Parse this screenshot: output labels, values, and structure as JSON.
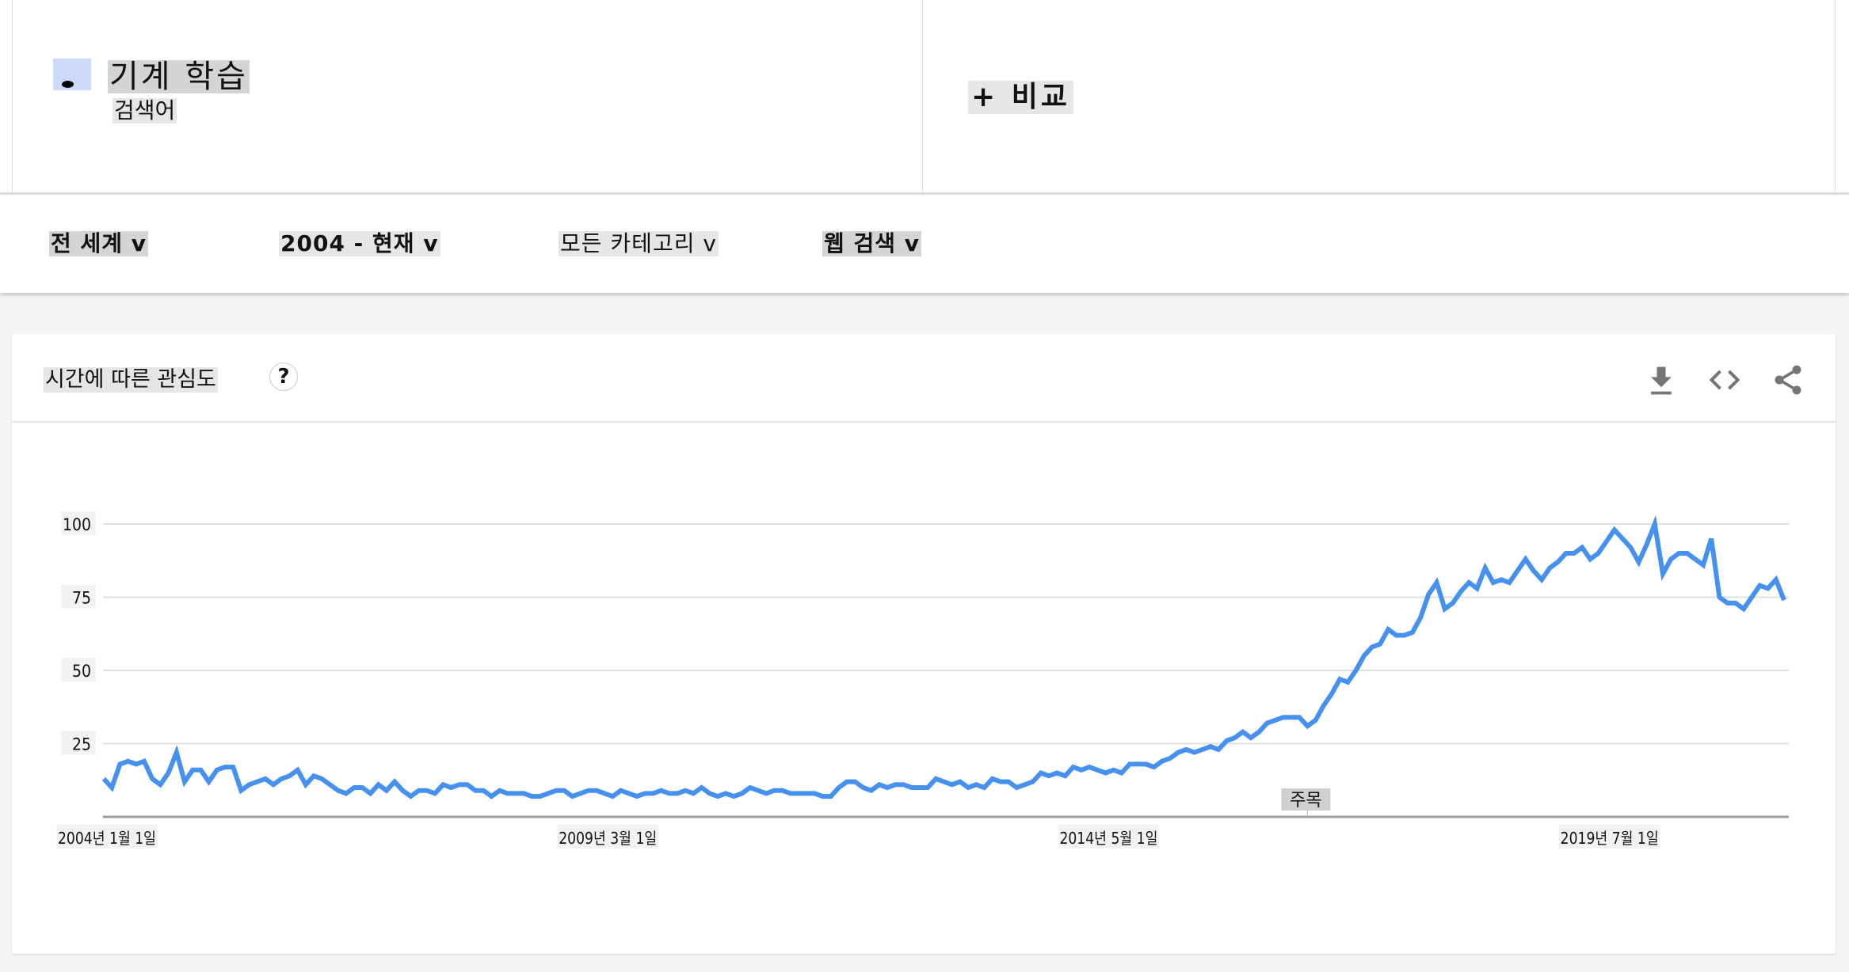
{
  "search_term": {
    "label": "기계 학습",
    "sublabel": "검색어",
    "color": "#cdd9fb"
  },
  "compare": {
    "label": "+ 비교"
  },
  "filters": [
    {
      "label": "전 세계 v"
    },
    {
      "label": "2004 - 현재 v"
    },
    {
      "label": "모든 카테고리 v"
    },
    {
      "label": "웹 검색 v"
    }
  ],
  "card": {
    "title": "시간에 따른 관심도",
    "help_label": "?",
    "icons": [
      "download-icon",
      "embed-code-icon",
      "share-icon"
    ]
  },
  "chart_data": {
    "type": "line",
    "title": "시간에 따른 관심도",
    "x_start": "2004-01",
    "x_frequency": "monthly",
    "x_ticks": [
      "2004년 1월 1일",
      "2009년 3월 1일",
      "2014년 5월 1일",
      "2019년 7월 1일"
    ],
    "x_tick_dates": [
      "2004-01",
      "2009-03",
      "2014-05",
      "2019-07"
    ],
    "y_ticks": [
      25,
      50,
      75,
      100
    ],
    "ylim": [
      0,
      100
    ],
    "grid": true,
    "annotation": {
      "label": "주목",
      "date": "2016-06"
    },
    "line_color": "#4691ef",
    "series": [
      {
        "values": [
          13,
          10,
          18,
          19,
          18,
          19,
          13,
          11,
          15,
          22,
          12,
          16,
          16,
          12,
          16,
          17,
          17,
          9,
          11,
          12,
          13,
          11,
          13,
          14,
          16,
          11,
          14,
          13,
          11,
          9,
          8,
          10,
          10,
          8,
          11,
          9,
          12,
          9,
          7,
          9,
          9,
          8,
          11,
          10,
          11,
          11,
          9,
          9,
          7,
          9,
          8,
          8,
          8,
          7,
          7,
          8,
          9,
          9,
          7,
          8,
          9,
          9,
          8,
          7,
          9,
          8,
          7,
          8,
          8,
          9,
          8,
          8,
          9,
          8,
          10,
          8,
          7,
          8,
          7,
          8,
          10,
          9,
          8,
          9,
          9,
          8,
          8,
          8,
          8,
          7,
          7,
          10,
          12,
          12,
          10,
          9,
          11,
          10,
          11,
          11,
          10,
          10,
          10,
          13,
          12,
          11,
          12,
          10,
          11,
          10,
          13,
          12,
          12,
          10,
          11,
          12,
          15,
          14,
          15,
          14,
          17,
          16,
          17,
          16,
          15,
          16,
          15,
          18,
          18,
          18,
          17,
          19,
          20,
          22,
          23,
          22,
          23,
          24,
          23,
          26,
          27,
          29,
          27,
          29,
          32,
          33,
          34,
          34,
          34,
          31,
          33,
          38,
          42,
          47,
          46,
          50,
          55,
          58,
          59,
          64,
          62,
          62,
          63,
          68,
          76,
          80,
          71,
          73,
          77,
          80,
          78,
          85,
          80,
          81,
          80,
          84,
          88,
          84,
          81,
          85,
          87,
          90,
          90,
          92,
          88,
          90,
          94,
          98,
          95,
          92,
          87,
          93,
          100,
          83,
          88,
          90,
          90,
          88,
          86,
          95,
          75,
          73,
          73,
          71,
          75,
          79,
          78,
          81,
          74
        ]
      }
    ]
  }
}
